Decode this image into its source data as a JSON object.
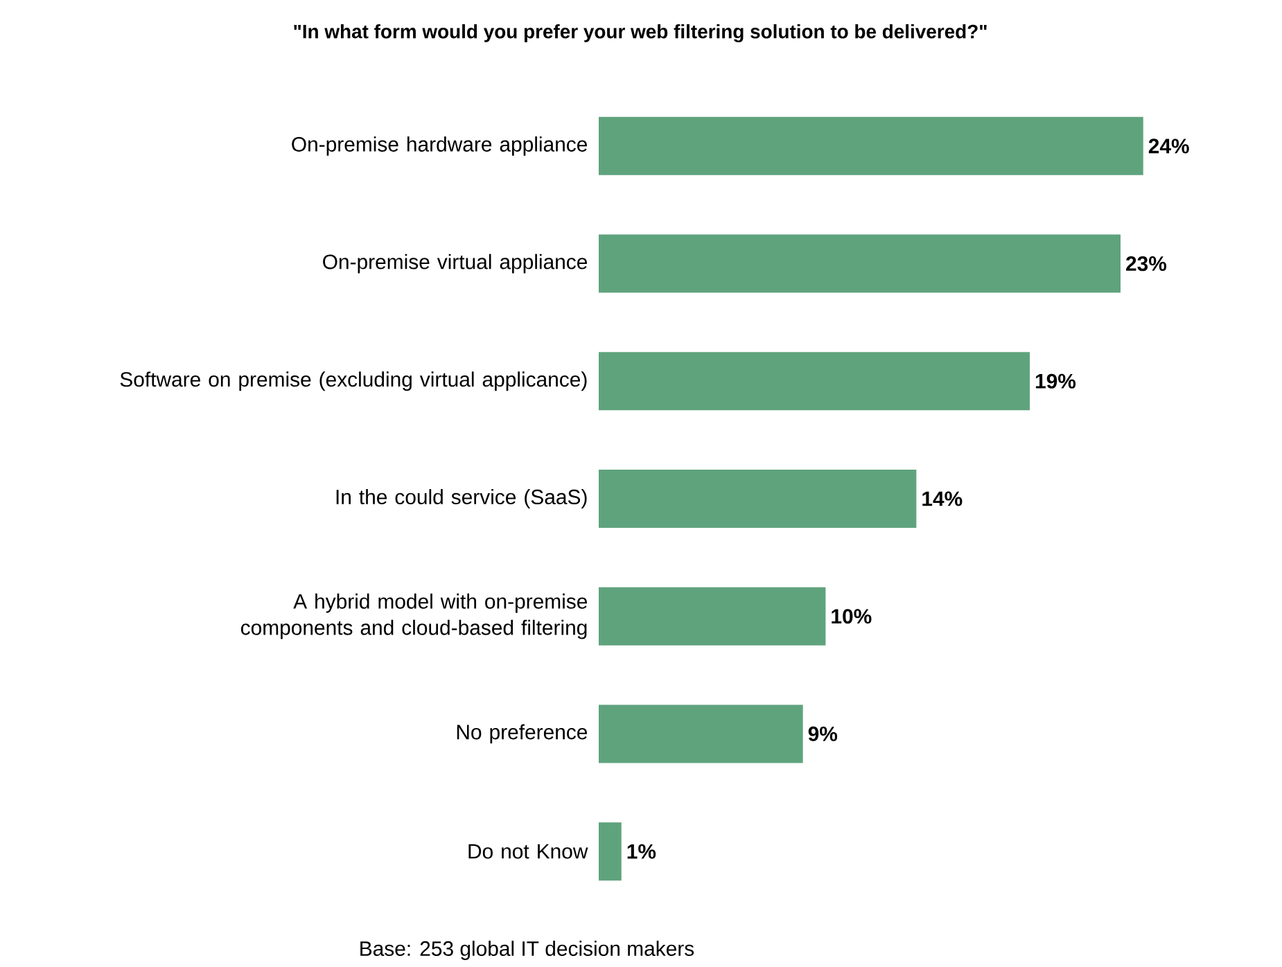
{
  "chart_data": {
    "type": "bar",
    "orientation": "horizontal",
    "title": "\"In what form would you prefer your web filtering solution to be delivered?\"",
    "categories": [
      "On-premise hardware appliance",
      "On-premise virtual appliance",
      "Software on premise (excluding virtual applicance)",
      "In the could service (SaaS)",
      "A hybrid model with on-premise components and cloud-based filtering",
      "No preference",
      "Do not Know"
    ],
    "values": [
      24,
      23,
      19,
      14,
      10,
      9,
      1
    ],
    "value_labels": [
      "24%",
      "23%",
      "19%",
      "14%",
      "10%",
      "9%",
      "1%"
    ],
    "color": "#5fa37d",
    "annotations": [
      "Base: 253 global IT decision makers"
    ]
  }
}
